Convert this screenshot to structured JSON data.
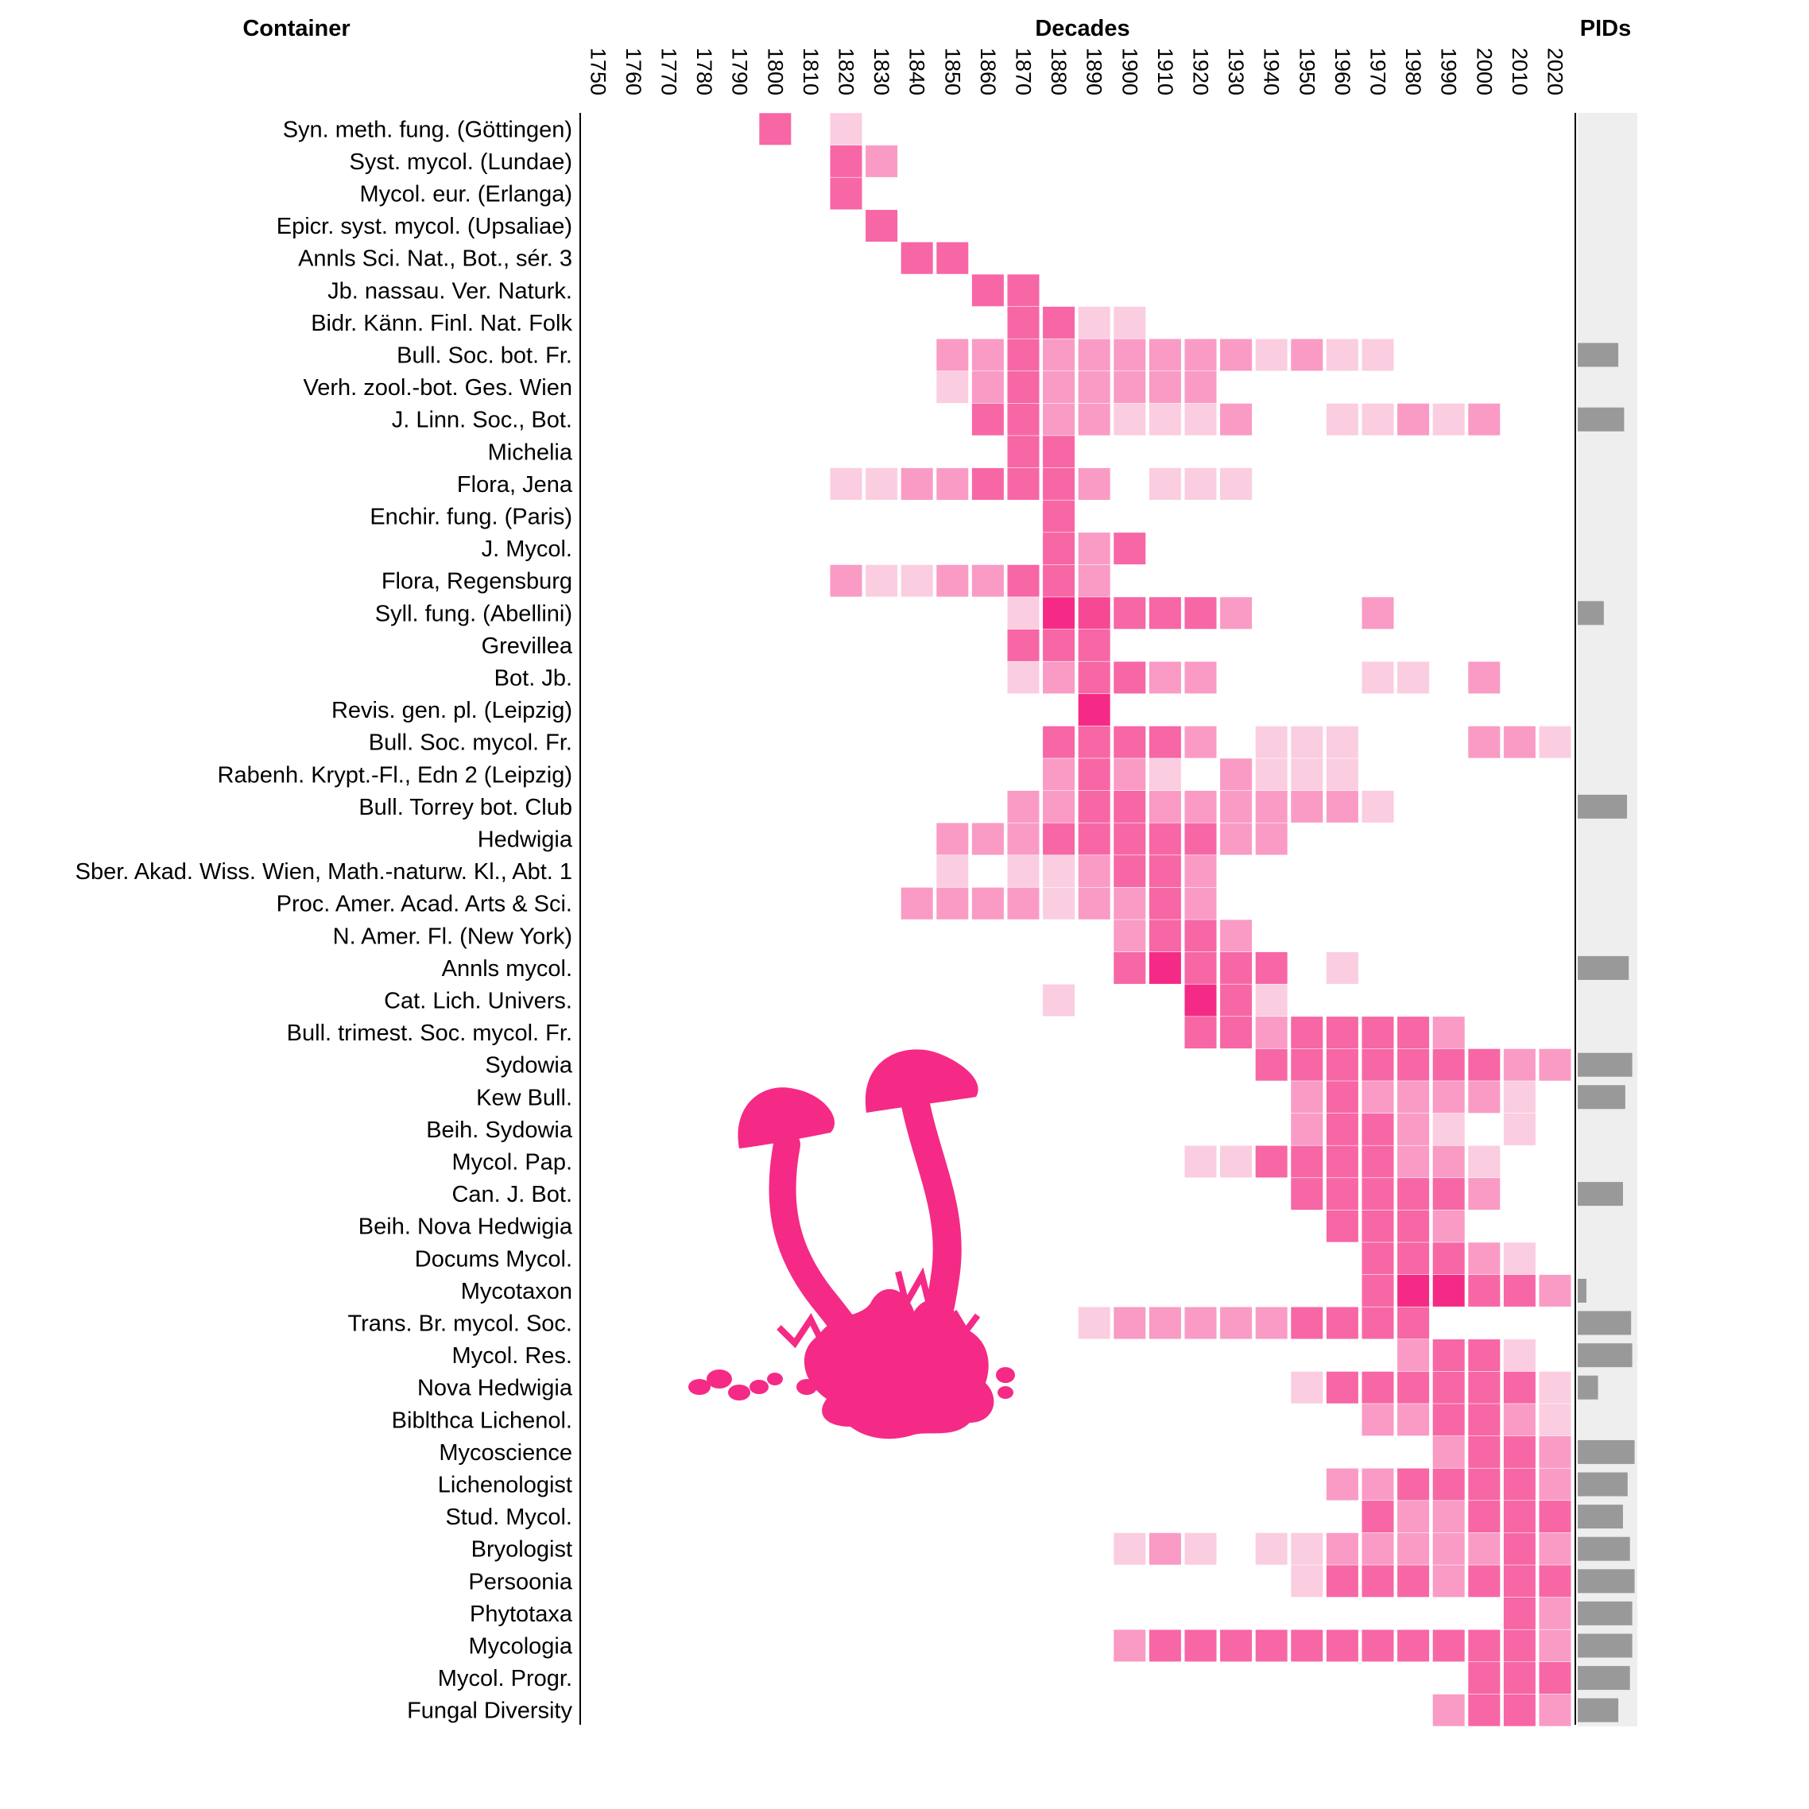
{
  "chart_data": {
    "type": "heatmap",
    "headers": {
      "container": "Container",
      "decades": "Decades",
      "pids": "PIDs"
    },
    "decades": [
      "1750",
      "1760",
      "1770",
      "1780",
      "1790",
      "1800",
      "1810",
      "1820",
      "1830",
      "1840",
      "1850",
      "1860",
      "1870",
      "1880",
      "1890",
      "1900",
      "1910",
      "1920",
      "1930",
      "1940",
      "1950",
      "1960",
      "1970",
      "1980",
      "1990",
      "2000",
      "2010",
      "2020"
    ],
    "value_scale": "intensity level 1 (lightest) to 5 (darkest)",
    "colors": {
      "1": "#fbcde0",
      "2": "#f99bc5",
      "3": "#f766a5",
      "4": "#f64893",
      "5": "#f52a86",
      "pid_bar": "#999999",
      "pid_track": "#eeeeee",
      "mushroom": "#f52a86"
    },
    "pid_max": 1.0,
    "rows": [
      {
        "label": "Syn. meth. fung. (Göttingen)",
        "cells": {
          "1800": 3,
          "1820": 1
        },
        "pid": null
      },
      {
        "label": "Syst. mycol. (Lundae)",
        "cells": {
          "1820": 3,
          "1830": 2
        },
        "pid": null
      },
      {
        "label": "Mycol. eur. (Erlanga)",
        "cells": {
          "1820": 3
        },
        "pid": null
      },
      {
        "label": "Epicr. syst. mycol. (Upsaliae)",
        "cells": {
          "1830": 3
        },
        "pid": null
      },
      {
        "label": "Annls Sci. Nat., Bot., sér. 3",
        "cells": {
          "1840": 3,
          "1850": 3
        },
        "pid": null
      },
      {
        "label": "Jb. nassau. Ver. Naturk.",
        "cells": {
          "1860": 3,
          "1870": 3
        },
        "pid": null
      },
      {
        "label": "Bidr. Känn. Finl. Nat. Folk",
        "cells": {
          "1870": 3,
          "1880": 3,
          "1890": 1,
          "1900": 1
        },
        "pid": null
      },
      {
        "label": "Bull. Soc. bot. Fr.",
        "cells": {
          "1850": 2,
          "1860": 2,
          "1870": 3,
          "1880": 2,
          "1890": 2,
          "1900": 2,
          "1910": 2,
          "1920": 2,
          "1930": 2,
          "1940": 1,
          "1950": 2,
          "1960": 1,
          "1970": 1
        },
        "pid": 0.7
      },
      {
        "label": "Verh. zool.-bot. Ges. Wien",
        "cells": {
          "1850": 1,
          "1860": 2,
          "1870": 3,
          "1880": 2,
          "1890": 2,
          "1900": 2,
          "1910": 2,
          "1920": 2
        },
        "pid": null
      },
      {
        "label": "J. Linn. Soc., Bot.",
        "cells": {
          "1860": 3,
          "1870": 3,
          "1880": 2,
          "1890": 2,
          "1900": 1,
          "1910": 1,
          "1920": 1,
          "1930": 2,
          "1960": 1,
          "1970": 1,
          "1980": 2,
          "1990": 1,
          "2000": 2
        },
        "pid": 0.8
      },
      {
        "label": "Michelia",
        "cells": {
          "1870": 3,
          "1880": 3
        },
        "pid": null
      },
      {
        "label": "Flora, Jena",
        "cells": {
          "1820": 1,
          "1830": 1,
          "1840": 2,
          "1850": 2,
          "1860": 3,
          "1870": 3,
          "1880": 3,
          "1890": 2,
          "1910": 1,
          "1920": 1,
          "1930": 1
        },
        "pid": null
      },
      {
        "label": "Enchir. fung. (Paris)",
        "cells": {
          "1880": 3
        },
        "pid": null
      },
      {
        "label": "J. Mycol.",
        "cells": {
          "1880": 3,
          "1890": 2,
          "1900": 3
        },
        "pid": null
      },
      {
        "label": "Flora, Regensburg",
        "cells": {
          "1820": 2,
          "1830": 1,
          "1840": 1,
          "1850": 2,
          "1860": 2,
          "1870": 3,
          "1880": 3,
          "1890": 2
        },
        "pid": null
      },
      {
        "label": "Syll. fung. (Abellini)",
        "cells": {
          "1870": 1,
          "1880": 5,
          "1890": 4,
          "1900": 3,
          "1910": 3,
          "1920": 3,
          "1930": 2,
          "1970": 2
        },
        "pid": 0.45
      },
      {
        "label": "Grevillea",
        "cells": {
          "1870": 3,
          "1880": 3,
          "1890": 3
        },
        "pid": null
      },
      {
        "label": "Bot. Jb.",
        "cells": {
          "1870": 1,
          "1880": 2,
          "1890": 3,
          "1900": 3,
          "1910": 2,
          "1920": 2,
          "1970": 1,
          "1980": 1,
          "2000": 2
        },
        "pid": null
      },
      {
        "label": "Revis. gen. pl. (Leipzig)",
        "cells": {
          "1890": 5
        },
        "pid": null
      },
      {
        "label": "Bull. Soc. mycol. Fr.",
        "cells": {
          "1880": 3,
          "1890": 3,
          "1900": 3,
          "1910": 3,
          "1920": 2,
          "1940": 1,
          "1950": 1,
          "1960": 1,
          "2000": 2,
          "2010": 2,
          "2020": 1
        },
        "pid": null
      },
      {
        "label": "Rabenh. Krypt.-Fl., Edn 2 (Leipzig)",
        "cells": {
          "1880": 2,
          "1890": 3,
          "1900": 2,
          "1910": 1,
          "1930": 2,
          "1940": 1,
          "1950": 1,
          "1960": 1
        },
        "pid": null
      },
      {
        "label": "Bull. Torrey bot. Club",
        "cells": {
          "1870": 2,
          "1880": 2,
          "1890": 3,
          "1900": 3,
          "1910": 2,
          "1920": 2,
          "1930": 2,
          "1940": 2,
          "1950": 2,
          "1960": 2,
          "1970": 1
        },
        "pid": 0.85
      },
      {
        "label": "Hedwigia",
        "cells": {
          "1850": 2,
          "1860": 2,
          "1870": 2,
          "1880": 3,
          "1890": 3,
          "1900": 3,
          "1910": 3,
          "1920": 3,
          "1930": 2,
          "1940": 2
        },
        "pid": null
      },
      {
        "label": "Sber. Akad. Wiss. Wien, Math.-naturw. Kl., Abt. 1",
        "cells": {
          "1850": 1,
          "1870": 1,
          "1880": 1,
          "1890": 2,
          "1900": 3,
          "1910": 3,
          "1920": 2
        },
        "pid": null
      },
      {
        "label": "Proc. Amer. Acad. Arts & Sci.",
        "cells": {
          "1840": 2,
          "1850": 2,
          "1860": 2,
          "1870": 2,
          "1880": 1,
          "1890": 2,
          "1900": 2,
          "1910": 3,
          "1920": 2
        },
        "pid": null
      },
      {
        "label": "N. Amer. Fl. (New York)",
        "cells": {
          "1900": 2,
          "1910": 3,
          "1920": 3,
          "1930": 2
        },
        "pid": null
      },
      {
        "label": "Annls mycol.",
        "cells": {
          "1900": 3,
          "1910": 5,
          "1920": 3,
          "1930": 3,
          "1940": 3,
          "1960": 1
        },
        "pid": 0.88
      },
      {
        "label": "Cat. Lich. Univers.",
        "cells": {
          "1880": 1,
          "1920": 5,
          "1930": 3,
          "1940": 1
        },
        "pid": null
      },
      {
        "label": "Bull. trimest. Soc. mycol. Fr.",
        "cells": {
          "1920": 3,
          "1930": 3,
          "1940": 2,
          "1950": 3,
          "1960": 3,
          "1970": 3,
          "1980": 3,
          "1990": 2
        },
        "pid": null
      },
      {
        "label": "Sydowia",
        "cells": {
          "1940": 3,
          "1950": 3,
          "1960": 3,
          "1970": 3,
          "1980": 3,
          "1990": 3,
          "2000": 3,
          "2010": 2,
          "2020": 2
        },
        "pid": 0.94
      },
      {
        "label": "Kew Bull.",
        "cells": {
          "1950": 2,
          "1960": 3,
          "1970": 2,
          "1980": 2,
          "1990": 2,
          "2000": 2,
          "2010": 1
        },
        "pid": 0.82
      },
      {
        "label": "Beih. Sydowia",
        "cells": {
          "1950": 2,
          "1960": 3,
          "1970": 3,
          "1980": 2,
          "1990": 1,
          "2010": 1
        },
        "pid": null
      },
      {
        "label": "Mycol. Pap.",
        "cells": {
          "1920": 1,
          "1930": 1,
          "1940": 3,
          "1950": 3,
          "1960": 3,
          "1970": 3,
          "1980": 2,
          "1990": 2,
          "2000": 1
        },
        "pid": null
      },
      {
        "label": "Can. J. Bot.",
        "cells": {
          "1950": 3,
          "1960": 3,
          "1970": 3,
          "1980": 3,
          "1990": 3,
          "2000": 2
        },
        "pid": 0.78
      },
      {
        "label": "Beih. Nova Hedwigia",
        "cells": {
          "1960": 3,
          "1970": 3,
          "1980": 3,
          "1990": 2
        },
        "pid": null
      },
      {
        "label": "Docums Mycol.",
        "cells": {
          "1970": 3,
          "1980": 3,
          "1990": 3,
          "2000": 2,
          "2010": 1
        },
        "pid": null
      },
      {
        "label": "Mycotaxon",
        "cells": {
          "1970": 3,
          "1980": 5,
          "1990": 5,
          "2000": 3,
          "2010": 3,
          "2020": 2
        },
        "pid": 0.15
      },
      {
        "label": "Trans. Br. mycol. Soc.",
        "cells": {
          "1890": 1,
          "1900": 2,
          "1910": 2,
          "1920": 2,
          "1930": 2,
          "1940": 2,
          "1950": 3,
          "1960": 3,
          "1970": 3,
          "1980": 3
        },
        "pid": 0.92
      },
      {
        "label": "Mycol. Res.",
        "cells": {
          "1980": 2,
          "1990": 3,
          "2000": 3,
          "2010": 1
        },
        "pid": 0.94
      },
      {
        "label": "Nova Hedwigia",
        "cells": {
          "1950": 1,
          "1960": 3,
          "1970": 3,
          "1980": 3,
          "1990": 3,
          "2000": 3,
          "2010": 3,
          "2020": 1
        },
        "pid": 0.35
      },
      {
        "label": "Biblthca Lichenol.",
        "cells": {
          "1970": 2,
          "1980": 2,
          "1990": 3,
          "2000": 3,
          "2010": 2,
          "2020": 1
        },
        "pid": null
      },
      {
        "label": "Mycoscience",
        "cells": {
          "1990": 2,
          "2000": 3,
          "2010": 3,
          "2020": 2
        },
        "pid": 0.98
      },
      {
        "label": "Lichenologist",
        "cells": {
          "1960": 2,
          "1970": 2,
          "1980": 3,
          "1990": 3,
          "2000": 3,
          "2010": 3,
          "2020": 2
        },
        "pid": 0.86
      },
      {
        "label": "Stud. Mycol.",
        "cells": {
          "1970": 3,
          "1980": 2,
          "1990": 2,
          "2000": 3,
          "2010": 3,
          "2020": 3
        },
        "pid": 0.78
      },
      {
        "label": "Bryologist",
        "cells": {
          "1900": 1,
          "1910": 2,
          "1920": 1,
          "1940": 1,
          "1950": 1,
          "1960": 2,
          "1970": 2,
          "1980": 2,
          "1990": 2,
          "2000": 2,
          "2010": 3,
          "2020": 2
        },
        "pid": 0.9
      },
      {
        "label": "Persoonia",
        "cells": {
          "1950": 1,
          "1960": 3,
          "1970": 3,
          "1980": 3,
          "1990": 2,
          "2000": 3,
          "2010": 3,
          "2020": 3
        },
        "pid": 0.98
      },
      {
        "label": "Phytotaxa",
        "cells": {
          "2010": 3,
          "2020": 2
        },
        "pid": 0.94
      },
      {
        "label": "Mycologia",
        "cells": {
          "1900": 2,
          "1910": 3,
          "1920": 3,
          "1930": 3,
          "1940": 3,
          "1950": 3,
          "1960": 3,
          "1970": 3,
          "1980": 3,
          "1990": 3,
          "2000": 3,
          "2010": 3,
          "2020": 2
        },
        "pid": 0.94
      },
      {
        "label": "Mycol. Progr.",
        "cells": {
          "2000": 3,
          "2010": 3,
          "2020": 3
        },
        "pid": 0.9
      },
      {
        "label": "Fungal Diversity",
        "cells": {
          "1990": 2,
          "2000": 3,
          "2010": 3,
          "2020": 2
        },
        "pid": 0.7
      }
    ]
  }
}
